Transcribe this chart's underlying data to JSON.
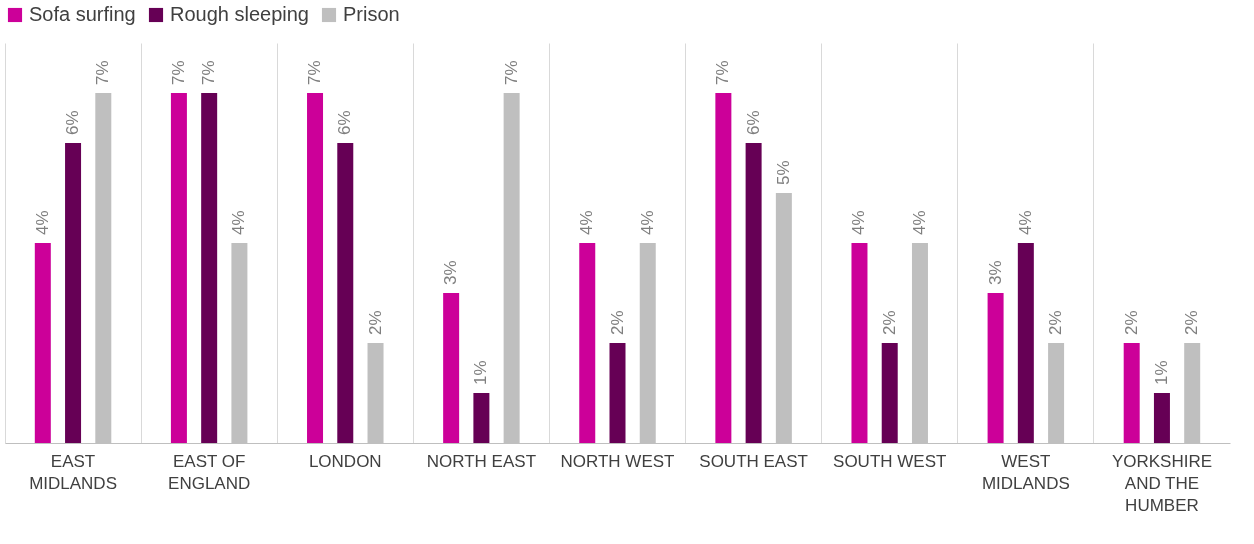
{
  "chart_data": {
    "type": "bar",
    "categories": [
      "EAST MIDLANDS",
      "EAST OF ENGLAND",
      "LONDON",
      "NORTH EAST",
      "NORTH WEST",
      "SOUTH EAST",
      "SOUTH WEST",
      "WEST MIDLANDS",
      "YORKSHIRE AND THE HUMBER"
    ],
    "series": [
      {
        "name": "Sofa surfing",
        "color": "#cc0099",
        "values": [
          4,
          7,
          7,
          3,
          4,
          7,
          4,
          3,
          2
        ],
        "value_labels": [
          "4%",
          "7%",
          "7%",
          "3%",
          "4%",
          "7%",
          "4%",
          "3%",
          "2%"
        ]
      },
      {
        "name": "Rough sleeping",
        "color": "#660055",
        "values": [
          6,
          7,
          6,
          1,
          2,
          6,
          2,
          4,
          1
        ],
        "value_labels": [
          "6%",
          "7%",
          "6%",
          "1%",
          "2%",
          "6%",
          "2%",
          "4%",
          "1%"
        ]
      },
      {
        "name": "Prison",
        "color": "#bfbfbf",
        "values": [
          7,
          4,
          2,
          7,
          4,
          5,
          4,
          2,
          2
        ],
        "value_labels": [
          "7%",
          "4%",
          "2%",
          "7%",
          "4%",
          "5%",
          "4%",
          "2%",
          "2%"
        ]
      }
    ],
    "ylim": [
      0,
      8
    ],
    "grid": "x",
    "legend": "top",
    "tick_labels": "x"
  }
}
